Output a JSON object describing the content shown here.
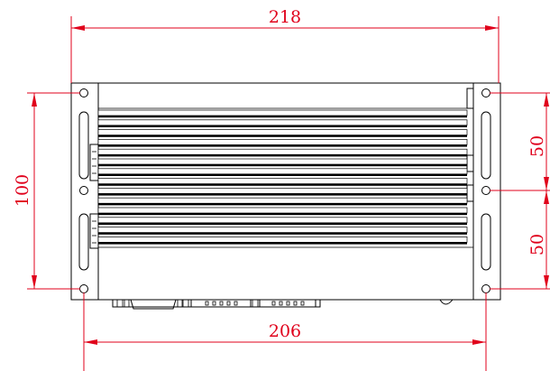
{
  "diagram": {
    "dimensions": {
      "overall_width": "218",
      "hole_spacing_horizontal": "206",
      "hole_spacing_vertical": "100",
      "upper_half_spacing": "50",
      "lower_half_spacing": "50"
    },
    "colors": {
      "dimension": "#e0001b",
      "outline": "#000000",
      "background": "#ffffff"
    }
  }
}
